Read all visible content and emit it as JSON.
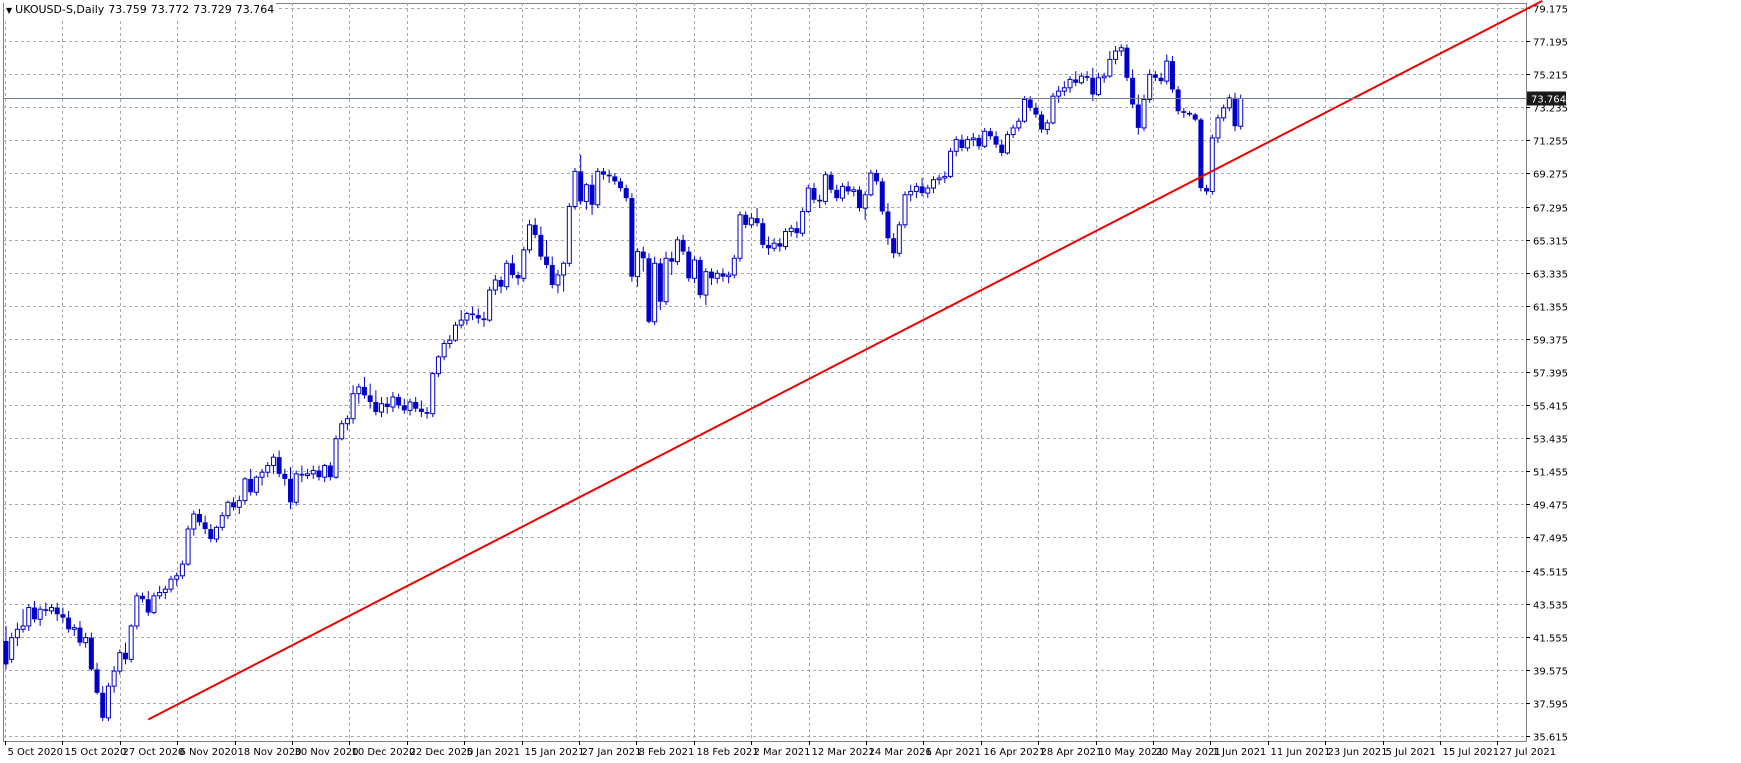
{
  "header": {
    "symbol": "UKOUSD-S,Daily",
    "open": "73.759",
    "high": "73.772",
    "low": "73.729",
    "close": "73.764"
  },
  "colors": {
    "candle": "#0000c8",
    "trendline": "#ee0000",
    "grid": "#a0a8b0",
    "frame": "#808080",
    "price_tag_bg": "#1a1a1a",
    "price_tag_text": "#ffffff",
    "price_line": "#708090"
  },
  "chart_data": {
    "type": "candlestick",
    "y_ticks": [
      "79.175",
      "77.195",
      "75.215",
      "73.235",
      "71.255",
      "69.275",
      "67.295",
      "65.315",
      "63.335",
      "61.355",
      "59.375",
      "57.395",
      "55.415",
      "53.435",
      "51.455",
      "49.475",
      "47.495",
      "45.515",
      "43.535",
      "41.555",
      "39.575",
      "37.595",
      "35.615"
    ],
    "ylim": [
      35.615,
      79.175
    ],
    "x_ticks": [
      "5 Oct 2020",
      "15 Oct 2020",
      "27 Oct 2020",
      "6 Nov 2020",
      "18 Nov 2020",
      "30 Nov 2020",
      "10 Dec 2020",
      "22 Dec 2020",
      "5 Jan 2021",
      "15 Jan 2021",
      "27 Jan 2021",
      "8 Feb 2021",
      "18 Feb 2021",
      "2 Mar 2021",
      "12 Mar 2021",
      "24 Mar 2021",
      "6 Apr 2021",
      "16 Apr 2021",
      "28 Apr 2021",
      "10 May 2021",
      "20 May 2021",
      "1 Jun 2021",
      "11 Jun 2021",
      "23 Jun 2021",
      "5 Jul 2021",
      "15 Jul 2021",
      "27 Jul 2021"
    ],
    "current_price": "73.764",
    "current_price_value": 73.764,
    "trendline": {
      "start": {
        "bar": 25,
        "price": 36.6
      },
      "end": {
        "bar": 270,
        "price": 79.6
      }
    },
    "candles": [
      [
        41.3,
        42.2,
        39.6,
        39.9
      ],
      [
        40.2,
        41.8,
        40.0,
        41.5
      ],
      [
        41.5,
        42.4,
        41.0,
        42.0
      ],
      [
        42.0,
        43.2,
        41.8,
        42.2
      ],
      [
        42.2,
        43.5,
        41.9,
        43.3
      ],
      [
        43.3,
        43.7,
        42.4,
        42.6
      ],
      [
        42.6,
        43.4,
        42.2,
        43.2
      ],
      [
        43.2,
        43.6,
        42.8,
        43.1
      ],
      [
        43.1,
        43.5,
        42.9,
        43.3
      ],
      [
        43.3,
        43.6,
        42.5,
        42.9
      ],
      [
        42.9,
        43.3,
        42.4,
        42.7
      ],
      [
        42.7,
        43.1,
        41.8,
        42.0
      ],
      [
        42.0,
        42.3,
        41.6,
        42.1
      ],
      [
        42.1,
        42.5,
        41.0,
        41.2
      ],
      [
        41.2,
        41.8,
        40.9,
        41.5
      ],
      [
        41.5,
        41.8,
        39.5,
        39.6
      ],
      [
        39.6,
        40.0,
        38.1,
        38.2
      ],
      [
        38.2,
        38.6,
        36.5,
        36.7
      ],
      [
        36.7,
        38.8,
        36.5,
        38.6
      ],
      [
        38.6,
        39.8,
        38.2,
        39.5
      ],
      [
        39.5,
        40.8,
        39.3,
        40.6
      ],
      [
        40.6,
        41.2,
        39.9,
        40.2
      ],
      [
        40.2,
        42.3,
        40.0,
        42.2
      ],
      [
        42.2,
        44.2,
        42.0,
        44.0
      ],
      [
        44.0,
        44.2,
        43.6,
        43.8
      ],
      [
        43.8,
        44.3,
        42.8,
        43.0
      ],
      [
        43.0,
        44.2,
        42.9,
        44.0
      ],
      [
        44.0,
        44.6,
        43.8,
        44.2
      ],
      [
        44.2,
        44.6,
        43.8,
        44.4
      ],
      [
        44.4,
        45.2,
        44.2,
        45.0
      ],
      [
        45.0,
        45.4,
        44.6,
        45.2
      ],
      [
        45.2,
        46.1,
        45.0,
        45.9
      ],
      [
        45.9,
        48.2,
        45.8,
        48.0
      ],
      [
        48.0,
        49.1,
        47.6,
        48.9
      ],
      [
        48.9,
        49.2,
        48.2,
        48.4
      ],
      [
        48.4,
        48.8,
        47.7,
        48.0
      ],
      [
        48.0,
        48.3,
        47.2,
        47.4
      ],
      [
        47.4,
        48.2,
        47.2,
        48.1
      ],
      [
        48.1,
        49.0,
        47.9,
        48.8
      ],
      [
        48.8,
        49.7,
        48.6,
        49.6
      ],
      [
        49.6,
        49.9,
        49.1,
        49.3
      ],
      [
        49.3,
        50.0,
        48.9,
        49.7
      ],
      [
        49.7,
        51.1,
        49.5,
        51.0
      ],
      [
        51.0,
        51.6,
        50.0,
        50.2
      ],
      [
        50.2,
        51.2,
        50.0,
        51.1
      ],
      [
        51.1,
        51.6,
        50.6,
        51.4
      ],
      [
        51.4,
        52.0,
        51.1,
        51.8
      ],
      [
        51.8,
        52.5,
        51.3,
        52.3
      ],
      [
        52.3,
        52.7,
        51.1,
        51.3
      ],
      [
        51.3,
        51.6,
        50.6,
        51.0
      ],
      [
        51.0,
        51.7,
        49.2,
        49.6
      ],
      [
        49.6,
        51.5,
        49.4,
        51.3
      ],
      [
        51.3,
        51.8,
        50.8,
        51.2
      ],
      [
        51.2,
        51.6,
        51.0,
        51.3
      ],
      [
        51.3,
        51.8,
        51.0,
        51.5
      ],
      [
        51.5,
        51.8,
        50.9,
        51.1
      ],
      [
        51.1,
        51.9,
        50.8,
        51.8
      ],
      [
        51.8,
        52.0,
        50.9,
        51.1
      ],
      [
        51.1,
        53.6,
        51.0,
        53.4
      ],
      [
        53.4,
        54.5,
        53.3,
        54.3
      ],
      [
        54.3,
        54.8,
        53.9,
        54.6
      ],
      [
        54.6,
        56.6,
        54.3,
        56.1
      ],
      [
        56.1,
        56.7,
        55.5,
        56.5
      ],
      [
        56.5,
        57.1,
        55.8,
        56.0
      ],
      [
        56.0,
        56.7,
        55.2,
        55.6
      ],
      [
        55.6,
        56.3,
        54.8,
        55.0
      ],
      [
        55.0,
        55.9,
        54.7,
        55.5
      ],
      [
        55.5,
        55.9,
        54.9,
        55.3
      ],
      [
        55.3,
        56.2,
        55.0,
        55.9
      ],
      [
        55.9,
        56.1,
        55.2,
        55.4
      ],
      [
        55.4,
        55.8,
        54.9,
        55.1
      ],
      [
        55.1,
        55.8,
        54.8,
        55.6
      ],
      [
        55.6,
        55.9,
        55.0,
        55.2
      ],
      [
        55.2,
        55.7,
        54.7,
        55.0
      ],
      [
        55.0,
        55.3,
        54.6,
        54.9
      ],
      [
        54.9,
        57.4,
        54.7,
        57.3
      ],
      [
        57.3,
        58.4,
        57.1,
        58.3
      ],
      [
        58.3,
        59.3,
        58.1,
        59.1
      ],
      [
        59.1,
        59.6,
        58.8,
        59.3
      ],
      [
        59.3,
        60.4,
        59.2,
        60.2
      ],
      [
        60.2,
        61.1,
        60.0,
        60.5
      ],
      [
        60.5,
        61.0,
        60.2,
        60.9
      ],
      [
        60.9,
        61.3,
        60.5,
        60.8
      ],
      [
        60.8,
        61.2,
        60.3,
        60.6
      ],
      [
        60.6,
        61.0,
        60.1,
        60.5
      ],
      [
        60.5,
        62.5,
        60.4,
        62.3
      ],
      [
        62.3,
        63.2,
        62.0,
        62.9
      ],
      [
        62.9,
        63.1,
        62.1,
        62.5
      ],
      [
        62.5,
        64.1,
        62.3,
        63.9
      ],
      [
        63.9,
        64.4,
        63.0,
        63.2
      ],
      [
        63.2,
        63.4,
        62.6,
        63.0
      ],
      [
        63.0,
        64.9,
        62.8,
        64.7
      ],
      [
        64.7,
        66.5,
        64.5,
        66.2
      ],
      [
        66.2,
        66.6,
        65.4,
        65.6
      ],
      [
        65.6,
        66.1,
        64.1,
        64.3
      ],
      [
        64.3,
        65.3,
        63.6,
        63.8
      ],
      [
        63.8,
        64.3,
        62.4,
        62.6
      ],
      [
        62.6,
        63.5,
        62.1,
        63.2
      ],
      [
        63.2,
        64.0,
        62.2,
        63.9
      ],
      [
        63.9,
        67.5,
        63.7,
        67.3
      ],
      [
        67.3,
        69.6,
        67.1,
        69.4
      ],
      [
        69.4,
        70.4,
        67.4,
        67.6
      ],
      [
        67.6,
        68.7,
        67.1,
        68.6
      ],
      [
        68.6,
        69.2,
        66.8,
        67.4
      ],
      [
        67.4,
        69.6,
        67.2,
        69.4
      ],
      [
        69.4,
        69.6,
        68.9,
        69.2
      ],
      [
        69.2,
        69.5,
        68.7,
        69.1
      ],
      [
        69.1,
        69.3,
        68.6,
        68.8
      ],
      [
        68.8,
        69.0,
        68.2,
        68.4
      ],
      [
        68.4,
        68.6,
        67.6,
        67.8
      ],
      [
        67.8,
        68.1,
        62.8,
        63.1
      ],
      [
        63.1,
        64.8,
        62.5,
        64.6
      ],
      [
        64.6,
        64.9,
        63.4,
        64.2
      ],
      [
        64.2,
        64.5,
        60.3,
        60.4
      ],
      [
        60.4,
        64.3,
        60.2,
        63.9
      ],
      [
        63.9,
        64.2,
        61.1,
        61.6
      ],
      [
        61.6,
        64.6,
        61.4,
        64.2
      ],
      [
        64.2,
        64.6,
        63.2,
        64.0
      ],
      [
        64.0,
        65.5,
        63.8,
        65.3
      ],
      [
        65.3,
        65.6,
        64.4,
        64.6
      ],
      [
        64.6,
        64.9,
        62.8,
        63.0
      ],
      [
        63.0,
        64.3,
        62.7,
        64.1
      ],
      [
        64.1,
        64.3,
        61.8,
        62.0
      ],
      [
        62.0,
        63.6,
        61.4,
        63.4
      ],
      [
        63.4,
        63.6,
        62.6,
        63.0
      ],
      [
        63.0,
        63.5,
        62.7,
        63.3
      ],
      [
        63.3,
        63.6,
        62.8,
        63.1
      ],
      [
        63.1,
        63.4,
        62.7,
        63.2
      ],
      [
        63.2,
        64.4,
        63.0,
        64.2
      ],
      [
        64.2,
        67.0,
        64.0,
        66.8
      ],
      [
        66.8,
        67.0,
        66.0,
        66.2
      ],
      [
        66.2,
        66.9,
        66.0,
        66.6
      ],
      [
        66.6,
        67.2,
        66.1,
        66.3
      ],
      [
        66.3,
        66.6,
        64.8,
        65.0
      ],
      [
        65.0,
        65.5,
        64.4,
        64.8
      ],
      [
        64.8,
        65.4,
        64.6,
        65.1
      ],
      [
        65.1,
        65.4,
        64.6,
        64.9
      ],
      [
        64.9,
        66.0,
        64.7,
        65.8
      ],
      [
        65.8,
        66.2,
        65.5,
        66.0
      ],
      [
        66.0,
        66.4,
        65.4,
        65.7
      ],
      [
        65.7,
        67.2,
        65.5,
        67.0
      ],
      [
        67.0,
        68.6,
        66.9,
        68.4
      ],
      [
        68.4,
        68.7,
        67.5,
        67.7
      ],
      [
        67.7,
        68.0,
        67.2,
        67.6
      ],
      [
        67.6,
        69.4,
        67.4,
        69.2
      ],
      [
        69.2,
        69.4,
        68.1,
        68.3
      ],
      [
        68.3,
        68.6,
        67.6,
        67.8
      ],
      [
        67.8,
        68.7,
        67.6,
        68.5
      ],
      [
        68.5,
        68.8,
        68.0,
        68.2
      ],
      [
        68.2,
        68.5,
        67.9,
        68.3
      ],
      [
        68.3,
        68.5,
        67.0,
        67.2
      ],
      [
        67.2,
        68.2,
        66.5,
        68.0
      ],
      [
        68.0,
        69.5,
        67.9,
        69.3
      ],
      [
        69.3,
        69.5,
        68.6,
        68.8
      ],
      [
        68.8,
        69.0,
        66.8,
        67.0
      ],
      [
        67.0,
        67.5,
        65.0,
        65.4
      ],
      [
        65.4,
        65.7,
        64.2,
        64.5
      ],
      [
        64.5,
        66.4,
        64.3,
        66.2
      ],
      [
        66.2,
        68.2,
        66.0,
        68.0
      ],
      [
        68.0,
        68.6,
        67.6,
        68.2
      ],
      [
        68.2,
        68.7,
        67.8,
        68.5
      ],
      [
        68.5,
        69.0,
        67.9,
        68.1
      ],
      [
        68.1,
        68.6,
        67.8,
        68.4
      ],
      [
        68.4,
        69.1,
        68.1,
        68.9
      ],
      [
        68.9,
        69.2,
        68.6,
        69.0
      ],
      [
        69.0,
        69.4,
        68.7,
        69.1
      ],
      [
        69.1,
        70.8,
        69.0,
        70.6
      ],
      [
        70.6,
        71.5,
        70.3,
        71.3
      ],
      [
        71.3,
        71.6,
        70.6,
        70.8
      ],
      [
        70.8,
        71.5,
        70.6,
        71.3
      ],
      [
        71.3,
        71.7,
        70.9,
        71.4
      ],
      [
        71.4,
        71.6,
        70.7,
        70.9
      ],
      [
        70.9,
        72.0,
        70.8,
        71.8
      ],
      [
        71.8,
        72.0,
        71.3,
        71.5
      ],
      [
        71.5,
        71.8,
        70.8,
        71.0
      ],
      [
        71.0,
        71.3,
        70.3,
        70.5
      ],
      [
        70.5,
        71.8,
        70.4,
        71.6
      ],
      [
        71.6,
        72.2,
        71.4,
        72.0
      ],
      [
        72.0,
        72.6,
        71.8,
        72.4
      ],
      [
        72.4,
        73.9,
        72.3,
        73.7
      ],
      [
        73.7,
        73.9,
        73.0,
        73.2
      ],
      [
        73.2,
        73.5,
        72.6,
        72.8
      ],
      [
        72.8,
        73.0,
        71.7,
        71.9
      ],
      [
        71.9,
        72.5,
        71.6,
        72.3
      ],
      [
        72.3,
        74.1,
        72.2,
        73.9
      ],
      [
        73.9,
        74.5,
        73.5,
        74.2
      ],
      [
        74.2,
        74.8,
        73.9,
        74.4
      ],
      [
        74.4,
        75.1,
        74.1,
        74.9
      ],
      [
        74.9,
        75.4,
        74.5,
        74.7
      ],
      [
        74.7,
        75.3,
        74.6,
        75.1
      ],
      [
        75.1,
        75.4,
        74.8,
        75.0
      ],
      [
        75.0,
        75.6,
        73.6,
        74.0
      ],
      [
        74.0,
        75.3,
        73.9,
        75.0
      ],
      [
        75.0,
        75.3,
        74.7,
        75.1
      ],
      [
        75.1,
        76.6,
        75.0,
        76.1
      ],
      [
        76.1,
        76.9,
        75.8,
        76.6
      ],
      [
        76.6,
        77.0,
        76.3,
        76.8
      ],
      [
        76.8,
        77.0,
        74.8,
        75.0
      ],
      [
        75.0,
        75.5,
        73.2,
        73.4
      ],
      [
        73.4,
        74.0,
        71.6,
        72.0
      ],
      [
        72.0,
        74.0,
        71.8,
        73.7
      ],
      [
        73.7,
        75.5,
        73.5,
        75.2
      ],
      [
        75.2,
        75.4,
        74.8,
        75.0
      ],
      [
        75.0,
        75.3,
        74.6,
        74.8
      ],
      [
        74.8,
        76.4,
        74.6,
        76.0
      ],
      [
        76.0,
        76.3,
        74.1,
        74.3
      ],
      [
        74.3,
        74.5,
        72.8,
        73.0
      ],
      [
        73.0,
        73.2,
        72.6,
        72.9
      ],
      [
        72.9,
        73.0,
        72.7,
        72.8
      ],
      [
        72.8,
        72.9,
        72.4,
        72.5
      ],
      [
        72.5,
        72.6,
        68.2,
        68.4
      ],
      [
        68.4,
        68.6,
        68.0,
        68.2
      ],
      [
        68.2,
        71.6,
        68.0,
        71.4
      ],
      [
        71.4,
        72.8,
        71.1,
        72.6
      ],
      [
        72.6,
        73.4,
        72.4,
        73.2
      ],
      [
        73.2,
        74.0,
        73.0,
        73.8
      ],
      [
        73.8,
        74.1,
        71.8,
        72.1
      ],
      [
        72.1,
        74.0,
        71.9,
        73.76
      ]
    ]
  }
}
